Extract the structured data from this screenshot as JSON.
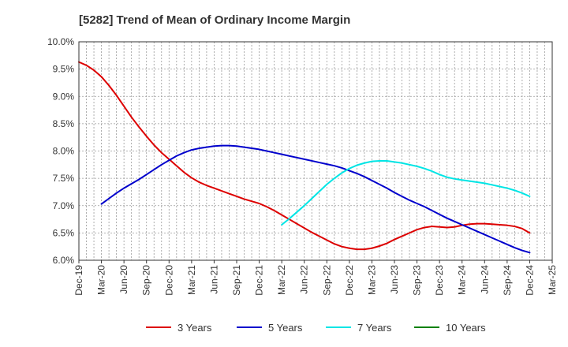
{
  "chart_data": {
    "type": "line",
    "title": "[5282]  Trend of Mean of Ordinary Income Margin",
    "xlabel": "",
    "ylabel": "",
    "x_ticks": [
      "Dec-19",
      "Mar-20",
      "Jun-20",
      "Sep-20",
      "Dec-20",
      "Mar-21",
      "Jun-21",
      "Sep-21",
      "Dec-21",
      "Mar-22",
      "Jun-22",
      "Sep-22",
      "Dec-22",
      "Mar-23",
      "Jun-23",
      "Sep-23",
      "Dec-23",
      "Mar-24",
      "Jun-24",
      "Sep-24",
      "Dec-24",
      "Mar-25"
    ],
    "y_ticks": [
      "6.0%",
      "6.5%",
      "7.0%",
      "7.5%",
      "8.0%",
      "8.5%",
      "9.0%",
      "9.5%",
      "10.0%"
    ],
    "ylim": [
      6.0,
      10.0
    ],
    "grid": true,
    "legend_position": "bottom",
    "series": [
      {
        "name": "3 Years",
        "color": "#dd0000",
        "x": [
          "Dec-19",
          "Jan-20",
          "Feb-20",
          "Mar-20",
          "Apr-20",
          "May-20",
          "Jun-20",
          "Jul-20",
          "Aug-20",
          "Sep-20",
          "Oct-20",
          "Nov-20",
          "Dec-20",
          "Jan-21",
          "Feb-21",
          "Mar-21",
          "Apr-21",
          "May-21",
          "Jun-21",
          "Jul-21",
          "Aug-21",
          "Sep-21",
          "Oct-21",
          "Nov-21",
          "Dec-21",
          "Jan-22",
          "Feb-22",
          "Mar-22",
          "Apr-22",
          "May-22",
          "Jun-22",
          "Jul-22",
          "Aug-22",
          "Sep-22",
          "Oct-22",
          "Nov-22",
          "Dec-22",
          "Jan-23",
          "Feb-23",
          "Mar-23",
          "Apr-23",
          "May-23",
          "Jun-23",
          "Jul-23",
          "Aug-23",
          "Sep-23",
          "Oct-23",
          "Nov-23",
          "Dec-23",
          "Jan-24",
          "Feb-24",
          "Mar-24",
          "Apr-24",
          "May-24",
          "Jun-24",
          "Jul-24",
          "Aug-24",
          "Sep-24",
          "Oct-24",
          "Nov-24",
          "Dec-24"
        ],
        "values": [
          9.63,
          9.57,
          9.48,
          9.36,
          9.2,
          9.02,
          8.82,
          8.62,
          8.44,
          8.27,
          8.11,
          7.97,
          7.85,
          7.73,
          7.61,
          7.51,
          7.43,
          7.37,
          7.32,
          7.27,
          7.22,
          7.17,
          7.12,
          7.08,
          7.04,
          6.98,
          6.91,
          6.83,
          6.75,
          6.67,
          6.59,
          6.51,
          6.44,
          6.37,
          6.3,
          6.25,
          6.22,
          6.2,
          6.2,
          6.22,
          6.26,
          6.31,
          6.38,
          6.44,
          6.5,
          6.56,
          6.6,
          6.62,
          6.61,
          6.6,
          6.61,
          6.64,
          6.66,
          6.67,
          6.67,
          6.66,
          6.65,
          6.64,
          6.62,
          6.58,
          6.5
        ]
      },
      {
        "name": "5 Years",
        "color": "#0000cc",
        "x": [
          "Mar-20",
          "Apr-20",
          "May-20",
          "Jun-20",
          "Jul-20",
          "Aug-20",
          "Sep-20",
          "Oct-20",
          "Nov-20",
          "Dec-20",
          "Jan-21",
          "Feb-21",
          "Mar-21",
          "Apr-21",
          "May-21",
          "Jun-21",
          "Jul-21",
          "Aug-21",
          "Sep-21",
          "Oct-21",
          "Nov-21",
          "Dec-21",
          "Jan-22",
          "Feb-22",
          "Mar-22",
          "Apr-22",
          "May-22",
          "Jun-22",
          "Jul-22",
          "Aug-22",
          "Sep-22",
          "Oct-22",
          "Nov-22",
          "Dec-22",
          "Jan-23",
          "Feb-23",
          "Mar-23",
          "Apr-23",
          "May-23",
          "Jun-23",
          "Jul-23",
          "Aug-23",
          "Sep-23",
          "Oct-23",
          "Nov-23",
          "Dec-23",
          "Jan-24",
          "Feb-24",
          "Mar-24",
          "Apr-24",
          "May-24",
          "Jun-24",
          "Jul-24",
          "Aug-24",
          "Sep-24",
          "Oct-24",
          "Nov-24",
          "Dec-24"
        ],
        "values": [
          7.03,
          7.13,
          7.23,
          7.32,
          7.4,
          7.48,
          7.57,
          7.66,
          7.75,
          7.83,
          7.91,
          7.97,
          8.02,
          8.05,
          8.07,
          8.09,
          8.1,
          8.1,
          8.09,
          8.07,
          8.05,
          8.03,
          8.0,
          7.97,
          7.94,
          7.91,
          7.88,
          7.85,
          7.82,
          7.79,
          7.76,
          7.73,
          7.69,
          7.64,
          7.59,
          7.53,
          7.46,
          7.39,
          7.32,
          7.24,
          7.17,
          7.1,
          7.04,
          6.98,
          6.91,
          6.84,
          6.77,
          6.71,
          6.65,
          6.59,
          6.53,
          6.47,
          6.41,
          6.35,
          6.29,
          6.23,
          6.18,
          6.14
        ]
      },
      {
        "name": "7 Years",
        "color": "#00e5e5",
        "x": [
          "Mar-22",
          "Apr-22",
          "May-22",
          "Jun-22",
          "Jul-22",
          "Aug-22",
          "Sep-22",
          "Oct-22",
          "Nov-22",
          "Dec-22",
          "Jan-23",
          "Feb-23",
          "Mar-23",
          "Apr-23",
          "May-23",
          "Jun-23",
          "Jul-23",
          "Aug-23",
          "Sep-23",
          "Oct-23",
          "Nov-23",
          "Dec-23",
          "Jan-24",
          "Feb-24",
          "Mar-24",
          "Apr-24",
          "May-24",
          "Jun-24",
          "Jul-24",
          "Aug-24",
          "Sep-24",
          "Oct-24",
          "Nov-24",
          "Dec-24"
        ],
        "values": [
          6.65,
          6.76,
          6.88,
          7.0,
          7.13,
          7.26,
          7.39,
          7.5,
          7.6,
          7.68,
          7.74,
          7.78,
          7.81,
          7.82,
          7.82,
          7.8,
          7.78,
          7.75,
          7.72,
          7.68,
          7.63,
          7.57,
          7.52,
          7.49,
          7.47,
          7.45,
          7.43,
          7.41,
          7.38,
          7.35,
          7.32,
          7.28,
          7.23,
          7.17
        ]
      },
      {
        "name": "10 Years",
        "color": "#008000",
        "x": [],
        "values": []
      }
    ]
  }
}
